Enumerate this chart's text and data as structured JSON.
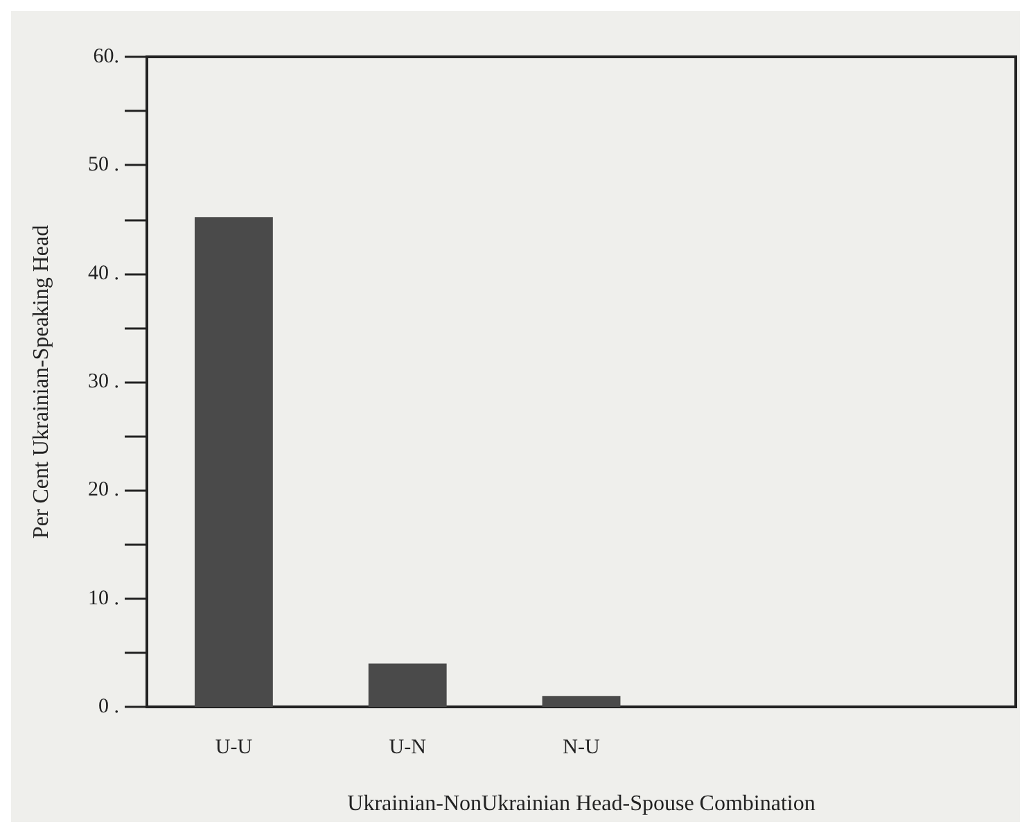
{
  "chart_data": {
    "type": "bar",
    "xlabel": "Ukrainian-NonUkrainian Head-Spouse Combination",
    "ylabel": "Per Cent Ukrainian-Speaking Head",
    "categories": [
      "U-U",
      "U-N",
      "N-U",
      null,
      null
    ],
    "values": [
      45.2,
      4.0,
      1.0,
      null,
      null
    ],
    "color": "#4a4a4a",
    "ylim": [
      0,
      60
    ],
    "yticks": [
      {
        "value": 0,
        "label": "0 ."
      },
      {
        "value": 5,
        "label": null
      },
      {
        "value": 10,
        "label": "10 ."
      },
      {
        "value": 15,
        "label": null
      },
      {
        "value": 20,
        "label": "20 ."
      },
      {
        "value": 25,
        "label": null
      },
      {
        "value": 30,
        "label": "30 ."
      },
      {
        "value": 35,
        "label": null
      },
      {
        "value": 40,
        "label": "40 ."
      },
      {
        "value": 45,
        "label": null
      },
      {
        "value": 50,
        "label": "50 ."
      },
      {
        "value": 55,
        "label": null
      },
      {
        "value": 60,
        "label": "60."
      }
    ],
    "grid": false
  }
}
